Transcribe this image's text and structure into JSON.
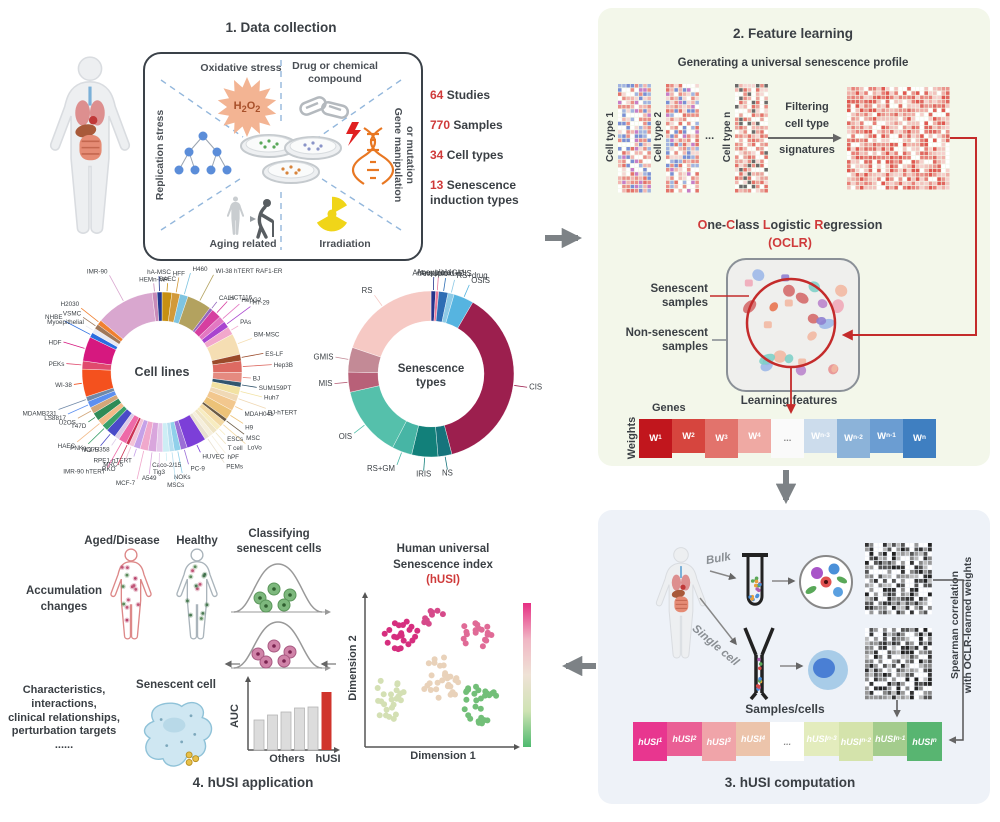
{
  "panel1": {
    "title": "1. Data collection",
    "sectors": {
      "oxidative": "Oxidative stress",
      "drug1": "Drug or chemical",
      "drug2": "compound",
      "replication": "Replication stress",
      "gene1": "Gene manipulation",
      "gene2": "or mutation",
      "aging": "Aging related",
      "irradiation": "Irradiation"
    },
    "h2o2_parts": [
      {
        "t": "H"
      },
      {
        "sub": "2"
      },
      {
        "t": "O"
      },
      {
        "sub": "2"
      }
    ],
    "stats": [
      {
        "value": "64",
        "label": "Studies"
      },
      {
        "value": "770",
        "label": "Samples"
      },
      {
        "value": "34",
        "label": "Cell types"
      },
      {
        "value": "13",
        "label": "Senescence induction types"
      }
    ]
  },
  "panel2": {
    "title": "2. Feature learning",
    "subtitle": "Generating a universal senescence profile",
    "cell_type_1": "Cell type 1",
    "cell_type_2": "Cell type 2",
    "cell_type_n": "Cell type n",
    "dots": "...",
    "filter_lines": [
      "Filtering",
      "cell type",
      "signatures"
    ],
    "oclr_parts": [
      {
        "t": "O",
        "c": "#cf3a3a"
      },
      {
        "t": "ne-"
      },
      {
        "t": "C",
        "c": "#cf3a3a"
      },
      {
        "t": "lass "
      },
      {
        "t": "L",
        "c": "#cf3a3a"
      },
      {
        "t": "ogistic "
      },
      {
        "t": "R",
        "c": "#cf3a3a"
      },
      {
        "t": "egression"
      }
    ],
    "oclr_sub": "(OCLR)",
    "senescent_1": "Senescent",
    "senescent_2": "samples",
    "non_senescent_1": "Non-senescent",
    "non_senescent_2": "samples",
    "learning": "Learning features",
    "genes": "Genes",
    "weights_label": "Weights",
    "weights": [
      {
        "main": "W",
        "sub": "1",
        "color": "#c1161d"
      },
      {
        "main": "W",
        "sub": "2",
        "color": "#d6453e"
      },
      {
        "main": "W",
        "sub": "3",
        "color": "#e2736c"
      },
      {
        "main": "W",
        "sub": "4",
        "color": "#efa9a3"
      },
      {
        "dots": true,
        "label": "...",
        "color": "#fafafa"
      },
      {
        "main": "W",
        "sub": "n-3",
        "color": "#ccdcec"
      },
      {
        "main": "W",
        "sub": "n-2",
        "color": "#8cb3d9"
      },
      {
        "main": "W",
        "sub": "n-1",
        "color": "#6b9dd2"
      },
      {
        "main": "W",
        "sub": "n",
        "color": "#3f7fc1"
      }
    ]
  },
  "panel3": {
    "title": "3. hUSI computation",
    "bulk": "Bulk",
    "single_cell": "Single cell",
    "samples_cells": "Samples/cells",
    "spearman_1": "Spearman correlation",
    "spearman_2": "with OCLR-learned weights",
    "husi": [
      {
        "main": "hUSI",
        "sub": "1",
        "color": "#e8368f"
      },
      {
        "main": "hUSI",
        "sub": "2",
        "color": "#ea5f95"
      },
      {
        "main": "hUSI",
        "sub": "3",
        "color": "#f0a4a9"
      },
      {
        "main": "hUSI",
        "sub": "4",
        "color": "#ecc4ab"
      },
      {
        "dots": true,
        "label": "...",
        "color": "#ffffff"
      },
      {
        "main": "hUSI",
        "sub": "n-3",
        "color": "#e3ecbd"
      },
      {
        "main": "hUSI",
        "sub": "n-2",
        "color": "#d4e3ab"
      },
      {
        "main": "hUSI",
        "sub": "n-1",
        "color": "#a4cc8d"
      },
      {
        "main": "hUSI",
        "sub": "n",
        "color": "#58b571"
      }
    ]
  },
  "panel4": {
    "title": "4. hUSI application",
    "aged": "Aged/Disease",
    "healthy": "Healthy",
    "accumulation_1": "Accumulation",
    "accumulation_2": "changes",
    "classifying_1": "Classifying",
    "classifying_2": "senescent cells",
    "senescent_cell": "Senescent cell",
    "characteristics": [
      "Characteristics,",
      "interactions,",
      "clinical relationships,",
      "perturbation targets",
      "......"
    ],
    "auc_label": "AUC",
    "others": "Others",
    "husi_x": "hUSI",
    "scatter_title_1": "Human universal",
    "scatter_title_2": "Senescence index",
    "scatter_title_red": "(hUSI)",
    "dim1": "Dimension 1",
    "dim2": "Dimension 2"
  },
  "heatmap_palettes": {
    "ct": [
      "#f2b6b0",
      "#ea8f86",
      "#e4736a",
      "#f6d7d4",
      "#ffffff",
      "#ffffff",
      "#a2b4e0",
      "#7a8fd4",
      "#c77ec7",
      "#f2b6b0",
      "#ea8f86",
      "#ffffff"
    ],
    "ctn": [
      "#f2b6b0",
      "#e4736a",
      "#ffffff",
      "#ffffff",
      "#f6d7d4",
      "#6a6a6a",
      "#ea8f86",
      "#ffffff",
      "#eaa49c"
    ],
    "big": [
      "#f0b0a8",
      "#e88078",
      "#e05850",
      "#f6d0cc",
      "#ffffff",
      "#ea968e",
      "#f2c4be",
      "#e06860",
      "#ffffff"
    ],
    "bw": [
      "#222222",
      "#555555",
      "#888888",
      "#bbbbbb",
      "#ffffff",
      "#ffffff",
      "#333333",
      "#999999",
      "#ffffff"
    ]
  },
  "chart_data": [
    {
      "id": "cell_lines",
      "type": "pie",
      "title": "Cell lines",
      "center_lines": [
        "Cell lines"
      ],
      "segments": [
        {
          "label": "SAEC",
          "value": 6,
          "color": "#c79012"
        },
        {
          "label": "HFF",
          "value": 5,
          "color": "#d29a3a"
        },
        {
          "label": "H460",
          "value": 5,
          "color": "#7ec4e0"
        },
        {
          "label": "WI-38 hTERT RAF1-ER",
          "value": 15,
          "color": "#b3a25f"
        },
        {
          "label": "CALs",
          "value": 2,
          "color": "#9467bd"
        },
        {
          "label": "HCT116",
          "value": 6,
          "color": "#d63fa0"
        },
        {
          "label": "HepG2",
          "value": 4,
          "color": "#e377c2"
        },
        {
          "label": "HT-29",
          "value": 4,
          "color": "#a944cf"
        },
        {
          "label": "PAs",
          "value": 5,
          "color": "#f2a8cc"
        },
        {
          "label": "BM-MSC",
          "value": 13,
          "color": "#f5deb3"
        },
        {
          "label": "ES-LF",
          "value": 4,
          "color": "#9a4a2a"
        },
        {
          "label": "Hep3B",
          "value": 7,
          "color": "#dd6a62"
        },
        {
          "label": "BJ",
          "value": 6,
          "color": "#e58a80"
        },
        {
          "label": "SUM159PT",
          "value": 3,
          "color": "#33566e"
        },
        {
          "label": "Huh7",
          "value": 5,
          "color": "#f2e2a2"
        },
        {
          "label": "BJ-hTERT",
          "value": 4,
          "color": "#f0d9b5"
        },
        {
          "label": "MDAH041",
          "value": 6,
          "color": "#f2c78e"
        },
        {
          "label": "H9",
          "value": 6,
          "color": "#ecc278"
        },
        {
          "label": "MSC",
          "value": 2,
          "color": "#6b5b45"
        },
        {
          "label": "LoVo",
          "value": 4,
          "color": "#f3d9a4"
        },
        {
          "label": "ESCs",
          "value": 3,
          "color": "#f7ecc0"
        },
        {
          "label": "T cell",
          "value": 3,
          "color": "#efe4c4"
        },
        {
          "label": "hPF",
          "value": 3,
          "color": "#f6efdc"
        },
        {
          "label": "PEMs",
          "value": 3,
          "color": "#e9e0cf"
        },
        {
          "label": "HUVEC",
          "value": 12,
          "color": "#7c3fd8"
        },
        {
          "label": "PC-9",
          "value": 4,
          "color": "#9b6fd6"
        },
        {
          "label": "NOKs",
          "value": 4,
          "color": "#90d0ea"
        },
        {
          "label": "MSCs",
          "value": 3,
          "color": "#b8dff0"
        },
        {
          "label": "Caco-2/15",
          "value": 4,
          "color": "#cdeef5"
        },
        {
          "label": "Tig3",
          "value": 4,
          "color": "#e5c8ea"
        },
        {
          "label": "A549",
          "value": 5,
          "color": "#d9a6dd"
        },
        {
          "label": "MCF-7",
          "value": 5,
          "color": "#f0a8cc"
        },
        {
          "label": "RPE1-hTERT",
          "value": 4,
          "color": "#c5a1e8"
        },
        {
          "label": "MRC-5",
          "value": 3,
          "color": "#f3c3d8"
        },
        {
          "label": "RKO",
          "value": 2,
          "color": "#cc3355"
        },
        {
          "label": "IMR-90 hTERT",
          "value": 5,
          "color": "#ee6aa8"
        },
        {
          "label": "NCI-H358",
          "value": 3,
          "color": "#dccbe8"
        },
        {
          "label": "A375",
          "value": 6,
          "color": "#4a4ac8"
        },
        {
          "label": "PNKs",
          "value": 4,
          "color": "#39a069"
        },
        {
          "label": "HAEC",
          "value": 4,
          "color": "#f2ba88"
        },
        {
          "label": "T47D",
          "value": 5,
          "color": "#2f8b57"
        },
        {
          "label": "U2OS",
          "value": 4,
          "color": "#d2a679"
        },
        {
          "label": "LS8817",
          "value": 4,
          "color": "#5c8ff0"
        },
        {
          "label": "MDAMB231",
          "value": 3,
          "color": "#7089a8"
        },
        {
          "label": "WI-38",
          "value": 17,
          "color": "#f4511e"
        },
        {
          "label": "PEKs",
          "value": 5,
          "color": "#e04a6e"
        },
        {
          "label": "HDF",
          "value": 15,
          "color": "#d6187f"
        },
        {
          "label": "NHBE",
          "value": 3,
          "color": "#2a6de0"
        },
        {
          "label": "Myoepithelial",
          "value": 3,
          "color": "#e9e9f2"
        },
        {
          "label": "VSMC",
          "value": 3,
          "color": "#a0785a"
        },
        {
          "label": "H2030",
          "value": 3,
          "color": "#f08030"
        },
        {
          "label": "IMR-90",
          "value": 36,
          "color": "#d9a7cf"
        },
        {
          "label": "HEMn-MP",
          "value": 3,
          "color": "#c88ab8"
        },
        {
          "label": "hA-MSC",
          "value": 3,
          "color": "#23388f"
        }
      ]
    },
    {
      "id": "senescence_types",
      "type": "pie",
      "title": "Senescence types",
      "center_lines": [
        "Senescence",
        "types"
      ],
      "segments": [
        {
          "label": "Aneuploid",
          "value": 3,
          "color": "#26348c"
        },
        {
          "label": "Aneuploid+GM",
          "value": 2,
          "color": "#e87a9a"
        },
        {
          "label": "Aneuploid+CIS",
          "value": 6,
          "color": "#2e6db4"
        },
        {
          "label": "RS+drug",
          "value": 4,
          "color": "#8ecae6"
        },
        {
          "label": "OSIS",
          "value": 13,
          "color": "#56b4e0"
        },
        {
          "label": "CIS",
          "value": 125,
          "color": "#9c1f4e"
        },
        {
          "label": "NS",
          "value": 9,
          "color": "#16747c"
        },
        {
          "label": "IRIS",
          "value": 17,
          "color": "#12807a"
        },
        {
          "label": "RS+GM",
          "value": 13,
          "color": "#47b5a5"
        },
        {
          "label": "OIS",
          "value": 46,
          "color": "#55c0ab"
        },
        {
          "label": "MIS",
          "value": 13,
          "color": "#b86078"
        },
        {
          "label": "GMIS",
          "value": 16,
          "color": "#c38a96"
        },
        {
          "label": "RS",
          "value": 66,
          "color": "#f6c9c4"
        }
      ]
    },
    {
      "id": "husi_scatter",
      "type": "scatter",
      "xlabel": "Dimension 1",
      "ylabel": "Dimension 2",
      "legend_gradient": [
        "#e62e83",
        "#f0b6c4",
        "#efe2d6",
        "#cfe3b4",
        "#4fba6f"
      ],
      "clusters": [
        {
          "name": "high-husi-1",
          "color": "#d62e7e",
          "cx": 0.21,
          "cy": 0.26,
          "rx": 0.13,
          "ry": 0.11,
          "n": 22
        },
        {
          "name": "high-husi-2",
          "color": "#d64a8a",
          "cx": 0.44,
          "cy": 0.15,
          "rx": 0.08,
          "ry": 0.07,
          "n": 9
        },
        {
          "name": "high-husi-3",
          "color": "#e06a96",
          "cx": 0.71,
          "cy": 0.26,
          "rx": 0.11,
          "ry": 0.1,
          "n": 18
        },
        {
          "name": "mid-husi",
          "color": "#e9d2ba",
          "cx": 0.48,
          "cy": 0.55,
          "rx": 0.14,
          "ry": 0.16,
          "n": 30
        },
        {
          "name": "low-husi-1",
          "color": "#d4e0b4",
          "cx": 0.13,
          "cy": 0.68,
          "rx": 0.1,
          "ry": 0.17,
          "n": 24
        },
        {
          "name": "low-husi-2",
          "color": "#72bf78",
          "cx": 0.74,
          "cy": 0.72,
          "rx": 0.13,
          "ry": 0.14,
          "n": 30
        }
      ]
    },
    {
      "id": "auc_bars",
      "type": "bar",
      "ylabel": "AUC",
      "categories": [
        "Others",
        "Others",
        "Others",
        "Others",
        "Others",
        "hUSI"
      ],
      "values": [
        30,
        35,
        38,
        42,
        43,
        58
      ],
      "colors": [
        "#dcdcdc",
        "#dcdcdc",
        "#dcdcdc",
        "#dcdcdc",
        "#dcdcdc",
        "#d0342c"
      ]
    }
  ]
}
